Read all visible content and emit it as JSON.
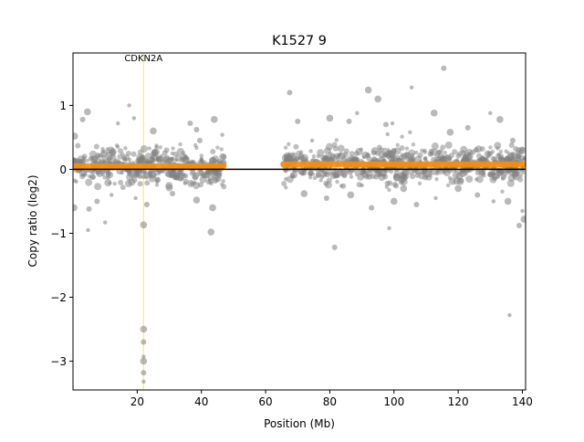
{
  "chart_data": {
    "type": "scatter",
    "title": "K1527 9",
    "xlabel": "Position (Mb)",
    "ylabel": "Copy ratio (log2)",
    "xlim": [
      0,
      141
    ],
    "ylim": [
      -3.45,
      1.82
    ],
    "xticks": [
      20,
      40,
      60,
      80,
      100,
      120,
      140
    ],
    "yticks": [
      -3,
      -2,
      -1,
      0,
      1
    ],
    "grid": false,
    "reference_line_y": 0,
    "highlight_gene": {
      "label": "CDKN2A",
      "x": 21.97,
      "color": "#ffe680"
    },
    "segments": [
      {
        "x_start": 0.2,
        "x_end": 47.0,
        "y": 0.05,
        "color": "#ff8c00"
      },
      {
        "x_start": 65.5,
        "x_end": 141.0,
        "y": 0.08,
        "color": "#ff8c00"
      }
    ],
    "series": [
      {
        "marker_color": "#808080",
        "points": [
          {
            "x": 22.0,
            "y": -2.5
          },
          {
            "x": 22.0,
            "y": -2.7
          },
          {
            "x": 22.0,
            "y": -2.93
          },
          {
            "x": 22.0,
            "y": -3.0
          },
          {
            "x": 22.0,
            "y": -3.18
          },
          {
            "x": 22.0,
            "y": -3.32
          },
          {
            "x": 22.0,
            "y": -0.87
          },
          {
            "x": 23.0,
            "y": -0.55
          },
          {
            "x": 4.7,
            "y": -0.95
          },
          {
            "x": 43.0,
            "y": -0.98
          },
          {
            "x": 81.5,
            "y": -1.22
          },
          {
            "x": 136.0,
            "y": -2.28
          },
          {
            "x": 140.5,
            "y": -0.78
          },
          {
            "x": 115.5,
            "y": 1.58
          },
          {
            "x": 105.5,
            "y": 1.28
          },
          {
            "x": 92.0,
            "y": 1.24
          },
          {
            "x": 67.5,
            "y": 1.2
          },
          {
            "x": 17.5,
            "y": 1.0
          },
          {
            "x": 4.5,
            "y": 0.9
          },
          {
            "x": 3.0,
            "y": 0.78
          },
          {
            "x": 19.0,
            "y": 0.8
          },
          {
            "x": 44.0,
            "y": 0.78
          },
          {
            "x": 36.5,
            "y": 0.72
          },
          {
            "x": 14.0,
            "y": 0.72
          },
          {
            "x": 25.0,
            "y": 0.6
          },
          {
            "x": 38.5,
            "y": 0.62
          },
          {
            "x": 46.5,
            "y": 0.54
          },
          {
            "x": 0.5,
            "y": 0.52
          },
          {
            "x": 39.5,
            "y": 0.45
          },
          {
            "x": 26.0,
            "y": 0.37
          },
          {
            "x": 43.5,
            "y": -0.6
          },
          {
            "x": 5.0,
            "y": -0.62
          },
          {
            "x": 10.0,
            "y": -0.83
          },
          {
            "x": 0.3,
            "y": -0.6
          },
          {
            "x": 7.5,
            "y": -0.5
          },
          {
            "x": 19.5,
            "y": -0.45
          },
          {
            "x": 38.5,
            "y": -0.48
          },
          {
            "x": 31.0,
            "y": -0.38
          },
          {
            "x": 12.0,
            "y": -0.4
          },
          {
            "x": 80.0,
            "y": 0.8
          },
          {
            "x": 86.0,
            "y": 0.75
          },
          {
            "x": 88.5,
            "y": 0.88
          },
          {
            "x": 95.0,
            "y": 1.1
          },
          {
            "x": 97.5,
            "y": 0.7
          },
          {
            "x": 99.5,
            "y": 0.72
          },
          {
            "x": 112.5,
            "y": 0.88
          },
          {
            "x": 123.0,
            "y": 0.65
          },
          {
            "x": 130.0,
            "y": 0.88
          },
          {
            "x": 133.0,
            "y": 0.78
          },
          {
            "x": 70.0,
            "y": 0.75
          },
          {
            "x": 105.0,
            "y": 0.58
          },
          {
            "x": 117.5,
            "y": 0.58
          },
          {
            "x": 137.0,
            "y": 0.45
          },
          {
            "x": 74.5,
            "y": 0.45
          },
          {
            "x": 86.5,
            "y": -0.4
          },
          {
            "x": 93.0,
            "y": -0.6
          },
          {
            "x": 98.5,
            "y": -0.92
          },
          {
            "x": 100.0,
            "y": -0.5
          },
          {
            "x": 107.0,
            "y": -0.55
          },
          {
            "x": 113.0,
            "y": -0.45
          },
          {
            "x": 120.0,
            "y": -0.3
          },
          {
            "x": 126.0,
            "y": -0.4
          },
          {
            "x": 131.0,
            "y": -0.5
          },
          {
            "x": 135.5,
            "y": -0.5
          },
          {
            "x": 139.0,
            "y": -0.88
          },
          {
            "x": 140.0,
            "y": -0.65
          },
          {
            "x": 72.0,
            "y": -0.38
          },
          {
            "x": 79.0,
            "y": -0.45
          },
          {
            "x": 90.0,
            "y": -0.25
          },
          {
            "x": 103.0,
            "y": -0.3
          },
          {
            "x": 96.0,
            "y": 0.3
          },
          {
            "x": 98.0,
            "y": 0.55
          }
        ]
      }
    ]
  }
}
